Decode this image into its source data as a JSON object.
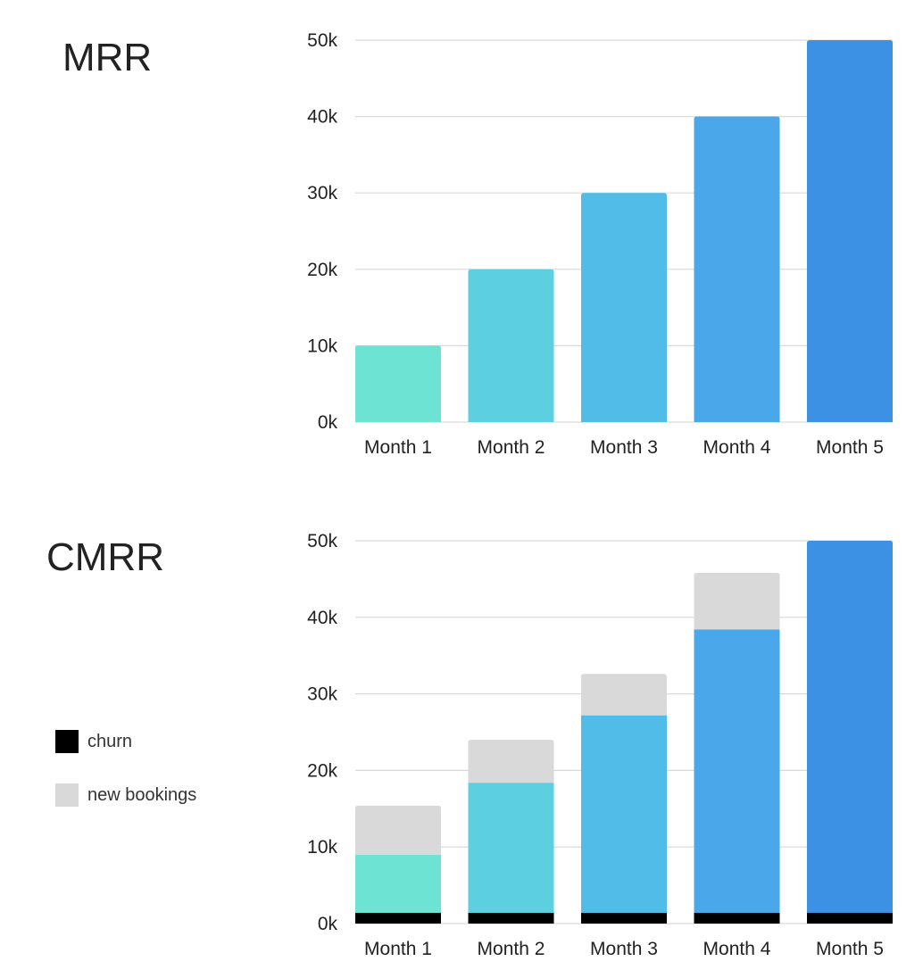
{
  "colors": {
    "month_colors": [
      "#6ce3d3",
      "#5cd0e1",
      "#52bce8",
      "#4aa7ea",
      "#3d91e4"
    ],
    "churn": "#000000",
    "new_bookings": "#d9d9d9",
    "grid": "#d9d9d9"
  },
  "chart_data": [
    {
      "type": "bar",
      "title": "MRR",
      "categories": [
        "Month 1",
        "Month 2",
        "Month 3",
        "Month 4",
        "Month 5"
      ],
      "values": [
        10000,
        20000,
        30000,
        40000,
        50000
      ],
      "ylim": [
        0,
        50000
      ],
      "yticks": [
        0,
        10000,
        20000,
        30000,
        40000,
        50000
      ],
      "ytick_labels": [
        "0k",
        "10k",
        "20k",
        "30k",
        "40k",
        "50k"
      ],
      "xlabel": "",
      "ylabel": "",
      "grid": true
    },
    {
      "type": "bar",
      "stacked": true,
      "title": "CMRR",
      "categories": [
        "Month 1",
        "Month 2",
        "Month 3",
        "Month 4",
        "Month 5"
      ],
      "series": [
        {
          "name": "churn",
          "values": [
            1400,
            1400,
            1400,
            1400,
            1400
          ]
        },
        {
          "values": [
            7600,
            17000,
            25800,
            37000,
            48600
          ]
        },
        {
          "name": "new bookings",
          "values": [
            6400,
            5600,
            5400,
            7400,
            0
          ]
        }
      ],
      "ylim": [
        0,
        50000
      ],
      "yticks": [
        0,
        10000,
        20000,
        30000,
        40000,
        50000
      ],
      "ytick_labels": [
        "0k",
        "10k",
        "20k",
        "30k",
        "40k",
        "50k"
      ],
      "xlabel": "",
      "ylabel": "",
      "grid": true,
      "legend": {
        "placement": "left",
        "entries": [
          "churn",
          "new bookings"
        ]
      }
    }
  ]
}
